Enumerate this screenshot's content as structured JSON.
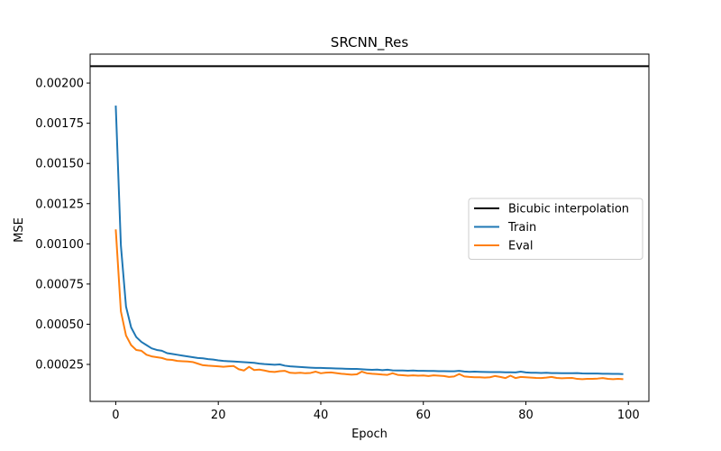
{
  "chart_data": {
    "type": "line",
    "title": "SRCNN_Res",
    "xlabel": "Epoch",
    "ylabel": "MSE",
    "xlim": [
      -5,
      104
    ],
    "ylim": [
      2e-05,
      0.00218
    ],
    "xticks": [
      0,
      20,
      40,
      60,
      80,
      100
    ],
    "xtick_labels": [
      "0",
      "20",
      "40",
      "60",
      "80",
      "100"
    ],
    "yticks": [
      0.00025,
      0.0005,
      0.00075,
      0.001,
      0.00125,
      0.0015,
      0.00175,
      0.002
    ],
    "ytick_labels": [
      "0.00025",
      "0.00050",
      "0.00075",
      "0.00100",
      "0.00125",
      "0.00150",
      "0.00175",
      "0.00200"
    ],
    "grid": false,
    "legend_position": "right",
    "hlines": [
      {
        "name": "Bicubic interpolation",
        "value": 0.002105,
        "color": "#000000"
      }
    ],
    "series": [
      {
        "name": "Train",
        "color": "#1f77b4",
        "x": [
          0,
          1,
          2,
          3,
          4,
          5,
          6,
          7,
          8,
          9,
          10,
          11,
          12,
          13,
          14,
          15,
          16,
          17,
          18,
          19,
          20,
          21,
          22,
          23,
          24,
          25,
          26,
          27,
          28,
          29,
          30,
          31,
          32,
          33,
          34,
          35,
          36,
          37,
          38,
          39,
          40,
          41,
          42,
          43,
          44,
          45,
          46,
          47,
          48,
          49,
          50,
          51,
          52,
          53,
          54,
          55,
          56,
          57,
          58,
          59,
          60,
          61,
          62,
          63,
          64,
          65,
          66,
          67,
          68,
          69,
          70,
          71,
          72,
          73,
          74,
          75,
          76,
          77,
          78,
          79,
          80,
          81,
          82,
          83,
          84,
          85,
          86,
          87,
          88,
          89,
          90,
          91,
          92,
          93,
          94,
          95,
          96,
          97,
          98,
          99
        ],
        "y": [
          0.00186,
          0.00099,
          0.00061,
          0.00048,
          0.00042,
          0.00039,
          0.00037,
          0.00035,
          0.00034,
          0.000335,
          0.00032,
          0.000315,
          0.00031,
          0.000305,
          0.0003,
          0.000295,
          0.00029,
          0.000288,
          0.000283,
          0.00028,
          0.000275,
          0.000272,
          0.00027,
          0.000268,
          0.000266,
          0.000264,
          0.000262,
          0.00026,
          0.000255,
          0.000252,
          0.00025,
          0.000248,
          0.00025,
          0.000242,
          0.000238,
          0.000236,
          0.000234,
          0.000232,
          0.00023,
          0.000228,
          0.000228,
          0.000227,
          0.000226,
          0.000225,
          0.000224,
          0.000223,
          0.000222,
          0.000222,
          0.00022,
          0.000218,
          0.000216,
          0.000218,
          0.000214,
          0.000217,
          0.000213,
          0.000212,
          0.000212,
          0.000211,
          0.000212,
          0.00021,
          0.00021,
          0.000209,
          0.000209,
          0.000208,
          0.000208,
          0.000207,
          0.000207,
          0.00021,
          0.000206,
          0.000204,
          0.000205,
          0.000204,
          0.000203,
          0.000202,
          0.000202,
          0.000202,
          0.000201,
          0.000201,
          0.0002,
          0.000205,
          0.0002,
          0.000198,
          0.000198,
          0.000197,
          0.000198,
          0.000196,
          0.000196,
          0.000195,
          0.000195,
          0.000195,
          0.000196,
          0.000194,
          0.000193,
          0.000193,
          0.000193,
          0.000192,
          0.000192,
          0.000191,
          0.000191,
          0.00019
        ]
      },
      {
        "name": "Eval",
        "color": "#ff7f0e",
        "x": [
          0,
          1,
          2,
          3,
          4,
          5,
          6,
          7,
          8,
          9,
          10,
          11,
          12,
          13,
          14,
          15,
          16,
          17,
          18,
          19,
          20,
          21,
          22,
          23,
          24,
          25,
          26,
          27,
          28,
          29,
          30,
          31,
          32,
          33,
          34,
          35,
          36,
          37,
          38,
          39,
          40,
          41,
          42,
          43,
          44,
          45,
          46,
          47,
          48,
          49,
          50,
          51,
          52,
          53,
          54,
          55,
          56,
          57,
          58,
          59,
          60,
          61,
          62,
          63,
          64,
          65,
          66,
          67,
          68,
          69,
          70,
          71,
          72,
          73,
          74,
          75,
          76,
          77,
          78,
          79,
          80,
          81,
          82,
          83,
          84,
          85,
          86,
          87,
          88,
          89,
          90,
          91,
          92,
          93,
          94,
          95,
          96,
          97,
          98,
          99
        ],
        "y": [
          0.00109,
          0.00058,
          0.00043,
          0.00037,
          0.00034,
          0.000335,
          0.00031,
          0.0003,
          0.000295,
          0.00029,
          0.00028,
          0.000278,
          0.000272,
          0.00027,
          0.000268,
          0.000265,
          0.000255,
          0.000245,
          0.000242,
          0.00024,
          0.000238,
          0.000235,
          0.000238,
          0.00024,
          0.00022,
          0.000212,
          0.000235,
          0.000215,
          0.000218,
          0.000212,
          0.000205,
          0.000203,
          0.000208,
          0.00021,
          0.000198,
          0.000196,
          0.000198,
          0.000195,
          0.000197,
          0.000205,
          0.000195,
          0.000199,
          0.0002,
          0.000196,
          0.000192,
          0.000189,
          0.000186,
          0.000188,
          0.000205,
          0.000195,
          0.000192,
          0.00019,
          0.000187,
          0.000185,
          0.000195,
          0.000185,
          0.000183,
          0.00018,
          0.000182,
          0.00018,
          0.000181,
          0.000178,
          0.000182,
          0.00018,
          0.000178,
          0.000172,
          0.000175,
          0.00019,
          0.000175,
          0.000172,
          0.00017,
          0.00017,
          0.000168,
          0.00017,
          0.000178,
          0.000172,
          0.000165,
          0.00018,
          0.000165,
          0.000172,
          0.00017,
          0.000168,
          0.000166,
          0.000165,
          0.000168,
          0.000172,
          0.000166,
          0.000164,
          0.000165,
          0.000166,
          0.00016,
          0.000158,
          0.00016,
          0.00016,
          0.000162,
          0.000165,
          0.00016,
          0.000158,
          0.00016,
          0.000158
        ]
      }
    ]
  }
}
